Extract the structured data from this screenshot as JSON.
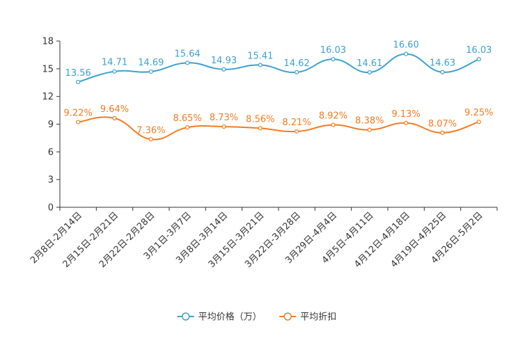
{
  "chart_data": {
    "type": "line",
    "title": "",
    "xlabel": "",
    "ylabel": "",
    "ylim": [
      0,
      18
    ],
    "yticks": [
      0,
      3,
      6,
      9,
      12,
      15,
      18
    ],
    "ytick_labels": [
      "0",
      "3",
      "6",
      "9",
      "12",
      "15",
      "18"
    ],
    "grid": false,
    "legend_position": "bottom-center",
    "categories": [
      "2月8日-2月14日",
      "2月15日-2月21日",
      "2月22日-2月28日",
      "3月1日-3月7日",
      "3月8日-3月14日",
      "3月15日-3月21日",
      "3月22日-3月28日",
      "3月29日-4月4日",
      "4月5日-4月11日",
      "4月12日-4月18日",
      "4月19日-4月25日",
      "4月26日-5月2日"
    ],
    "series": [
      {
        "name": "平均价格（万）",
        "color": "#3ba1cf",
        "values": [
          13.56,
          14.71,
          14.69,
          15.64,
          14.93,
          15.41,
          14.62,
          16.03,
          14.61,
          16.6,
          14.63,
          16.03
        ],
        "labels": [
          "13.56",
          "14.71",
          "14.69",
          "15.64",
          "14.93",
          "15.41",
          "14.62",
          "16.03",
          "14.61",
          "16.60",
          "14.63",
          "16.03"
        ]
      },
      {
        "name": "平均折扣",
        "color": "#f47b20",
        "values": [
          9.22,
          9.64,
          7.36,
          8.65,
          8.73,
          8.56,
          8.21,
          8.92,
          8.38,
          9.13,
          8.07,
          9.25
        ],
        "labels": [
          "9.22%",
          "9.64%",
          "7.36%",
          "8.65%",
          "8.73%",
          "8.56%",
          "8.21%",
          "8.92%",
          "8.38%",
          "9.13%",
          "8.07%",
          "9.25%"
        ]
      }
    ]
  }
}
